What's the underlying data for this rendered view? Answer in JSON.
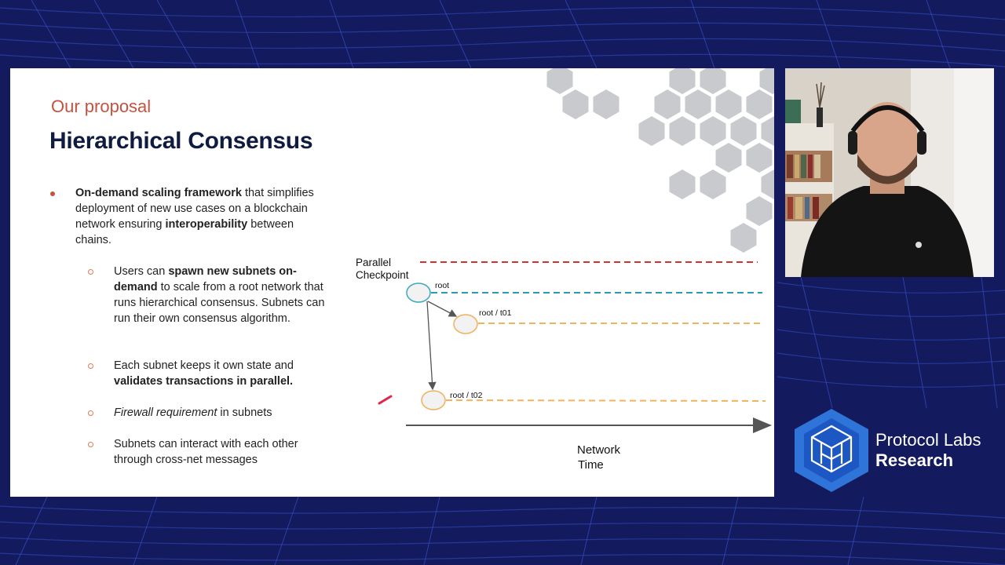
{
  "slide": {
    "eyebrow": "Our proposal",
    "title": "Hierarchical Consensus",
    "bullet": {
      "bold1": "On-demand scaling framework",
      "text1": " that simplifies deployment of new use cases on a blockchain network ensuring ",
      "bold2": "interoperability",
      "text2": " between chains."
    },
    "sub1": {
      "text1": "Users can ",
      "bold1": "spawn new subnets on-demand",
      "text2": " to scale from a root network that runs hierarchical consensus. Subnets can run their own consensus algorithm."
    },
    "sub2": {
      "text1": "Each subnet keeps it own state and ",
      "bold1": "validates transactions in parallel."
    },
    "sub3": {
      "italic1": "Firewall requirement",
      "text1": " in subnets"
    },
    "sub4": {
      "text1": "Subnets can interact with each other through cross-net messages"
    }
  },
  "diagram": {
    "checkpoint_label": "Parallel Checkpoint",
    "node_root": "root",
    "node_t01": "root / t01",
    "node_t02": "root / t02",
    "time_label_1": "Network",
    "time_label_2": "Time",
    "colors": {
      "checkpoint_line": "#d62f2f",
      "root_line": "#2a9bb5",
      "subnet_line": "#f2b45a",
      "root_node_stroke": "#3da9be",
      "subnet_node_stroke": "#f0b25e"
    }
  },
  "brand": {
    "name1": "Protocol Labs",
    "name2": "Research",
    "logo_icon": "protocol-labs-cube-icon"
  },
  "camera": {
    "icon": "presenter-webcam-feed"
  }
}
